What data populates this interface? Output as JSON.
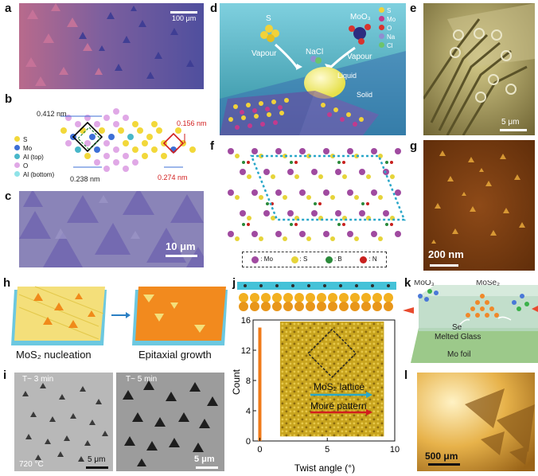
{
  "labels": {
    "a": "a",
    "b": "b",
    "c": "c",
    "d": "d",
    "e": "e",
    "f": "f",
    "g": "g",
    "h": "h",
    "i": "i",
    "j": "j",
    "k": "k",
    "l": "l"
  },
  "panel_a": {
    "scale": "100 μm"
  },
  "panel_b": {
    "dim1": "0.412 nm",
    "dim2": "0.238 nm",
    "dim3": "0.156 nm",
    "dim4": "0.274 nm",
    "legend": [
      "S",
      "Mo",
      "Al (top)",
      "O",
      "Al (bottom)"
    ],
    "legend_colors": [
      "#f2d83a",
      "#3d6fd6",
      "#48b7c9",
      "#e0a8e6",
      "#8fe3e8"
    ]
  },
  "panel_c": {
    "scale": "10 μm"
  },
  "panel_d": {
    "s": "S",
    "moo3": "MoO₃",
    "vapour_left": "Vapour",
    "vapour_right": "Vapour",
    "nacl": "NaCl",
    "liquid": "Liquid",
    "solid": "Solid",
    "legend": [
      "S",
      "Mo",
      "O",
      "Na",
      "Cl"
    ],
    "legend_colors": [
      "#f1d23a",
      "#c23a8e",
      "#d8342f",
      "#8f8fd0",
      "#6cc46c"
    ]
  },
  "panel_e": {
    "scale": "5 μm"
  },
  "panel_f": {
    "legend": [
      ": Mo",
      ": S",
      ": B",
      ": N"
    ],
    "legend_colors": [
      "#a04aa0",
      "#e6d43a",
      "#2a8a3a",
      "#c8201e"
    ]
  },
  "panel_g": {
    "scale": "200 nm"
  },
  "panel_h": {
    "left": "MoS₂ nucleation",
    "right": "Epitaxial growth"
  },
  "panel_i": {
    "left_time": "T~ 3 min",
    "right_time": "T~ 5 min",
    "temp": "720 °C",
    "left_scale": "5 μm",
    "right_scale": "5 μm"
  },
  "chart_data": {
    "type": "bar",
    "x": [
      0
    ],
    "values": [
      15
    ],
    "xlabel": "Twist angle (°)",
    "ylabel": "Count",
    "xlim": [
      -0.5,
      10
    ],
    "ylim": [
      0,
      16
    ],
    "xticks": [
      0,
      5,
      10
    ],
    "yticks": [
      0,
      4,
      8,
      12,
      16
    ],
    "annotations": [
      "MoS₂ lattice",
      "Moiré pattern"
    ]
  },
  "panel_k": {
    "moo3": "MoO₃",
    "mose2": "MoSe₂",
    "se": "Se",
    "glass": "Melted Glass",
    "foil": "Mo foil"
  },
  "panel_l": {
    "scale": "500 μm"
  }
}
